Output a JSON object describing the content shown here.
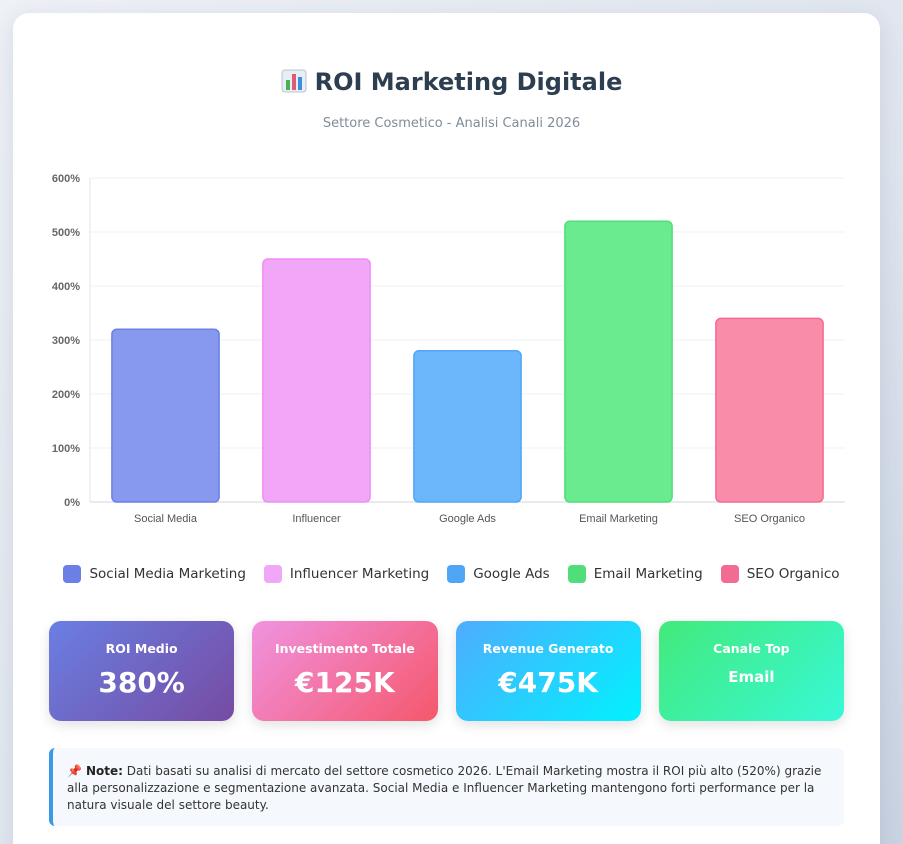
{
  "header": {
    "title": "ROI Marketing Digitale",
    "title_icon": "bar-chart-icon",
    "subtitle": "Settore Cosmetico - Analisi Canali 2026"
  },
  "chart_data": {
    "type": "bar",
    "categories": [
      "Social Media",
      "Influencer",
      "Google Ads",
      "Email Marketing",
      "SEO Organico"
    ],
    "values": [
      320,
      450,
      280,
      520,
      340
    ],
    "ylim": [
      0,
      600
    ],
    "yticks": [
      0,
      100,
      200,
      300,
      400,
      500,
      600
    ],
    "ytick_suffix": "%",
    "grid": true,
    "legend_position": "bottom",
    "legend": [
      "Social Media Marketing",
      "Influencer Marketing",
      "Google Ads",
      "Email Marketing",
      "SEO Organico"
    ],
    "colors": [
      "#8798ef",
      "#f1a6f8",
      "#6cb6fb",
      "#6beb8f",
      "#f98ca8"
    ],
    "border_colors": [
      "#6b7fe6",
      "#ee8df6",
      "#4fa6f7",
      "#4fde79",
      "#f36b92"
    ]
  },
  "stats": [
    {
      "label": "ROI Medio",
      "value": "380%"
    },
    {
      "label": "Investimento Totale",
      "value": "€125K"
    },
    {
      "label": "Revenue Generato",
      "value": "€475K"
    },
    {
      "label": "Canale Top",
      "value": "Email"
    }
  ],
  "note": {
    "icon": "pushpin-icon",
    "label": "Note:",
    "text": "Dati basati su analisi di mercato del settore cosmetico 2026. L'Email Marketing mostra il ROI più alto (520%) grazie alla personalizzazione e segmentazione avanzata. Social Media e Influencer Marketing mantengono forti performance per la natura visuale del settore beauty."
  }
}
